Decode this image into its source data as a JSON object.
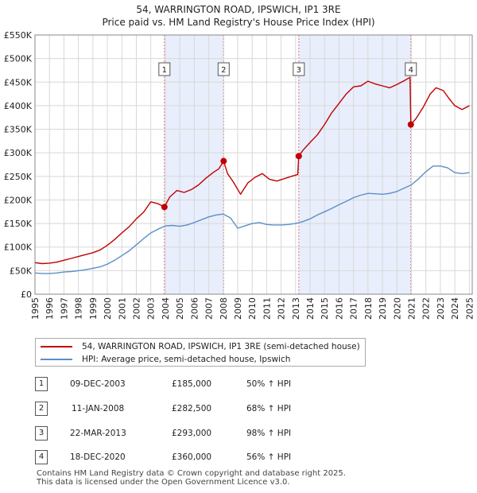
{
  "title_line1": "54, WARRINGTON ROAD, IPSWICH, IP1 3RE",
  "title_line2": "Price paid vs. HM Land Registry's House Price Index (HPI)",
  "legend": {
    "property": "54, WARRINGTON ROAD, IPSWICH, IP1 3RE (semi-detached house)",
    "hpi": "HPI: Average price, semi-detached house, Ipswich"
  },
  "colors": {
    "property": "#c00000",
    "hpi": "#5b8fc9",
    "shade": "#e8eefb",
    "vline": "#e07070"
  },
  "transactions": [
    {
      "num": "1",
      "date": "09-DEC-2003",
      "price": "£185,000",
      "hpi": "50% ↑ HPI"
    },
    {
      "num": "2",
      "date": "11-JAN-2008",
      "price": "£282,500",
      "hpi": "68% ↑ HPI"
    },
    {
      "num": "3",
      "date": "22-MAR-2013",
      "price": "£293,000",
      "hpi": "98% ↑ HPI"
    },
    {
      "num": "4",
      "date": "18-DEC-2020",
      "price": "£360,000",
      "hpi": "56% ↑ HPI"
    }
  ],
  "footer": {
    "line1": "Contains HM Land Registry data © Crown copyright and database right 2025.",
    "line2": "This data is licensed under the Open Government Licence v3.0."
  },
  "chart_data": {
    "type": "line",
    "title": "54, WARRINGTON ROAD, IPSWICH, IP1 3RE — Price paid vs. HM Land Registry's House Price Index (HPI)",
    "xlabel": "",
    "ylabel": "",
    "xlim": [
      1995,
      2025.2
    ],
    "ylim": [
      0,
      550000
    ],
    "xticks": [
      1995,
      1996,
      1997,
      1998,
      1999,
      2000,
      2001,
      2002,
      2003,
      2004,
      2005,
      2006,
      2007,
      2008,
      2009,
      2010,
      2011,
      2012,
      2013,
      2014,
      2015,
      2016,
      2017,
      2018,
      2019,
      2020,
      2021,
      2022,
      2023,
      2024,
      2025
    ],
    "yticks": [
      {
        "value": 0,
        "label": "£0"
      },
      {
        "value": 50000,
        "label": "£50K"
      },
      {
        "value": 100000,
        "label": "£100K"
      },
      {
        "value": 150000,
        "label": "£150K"
      },
      {
        "value": 200000,
        "label": "£200K"
      },
      {
        "value": 250000,
        "label": "£250K"
      },
      {
        "value": 300000,
        "label": "£300K"
      },
      {
        "value": 350000,
        "label": "£350K"
      },
      {
        "value": 400000,
        "label": "£400K"
      },
      {
        "value": 450000,
        "label": "£450K"
      },
      {
        "value": 500000,
        "label": "£500K"
      },
      {
        "value": 550000,
        "label": "£550K"
      }
    ],
    "grid": true,
    "shaded_ranges": [
      [
        2003.94,
        2008.03
      ],
      [
        2013.22,
        2020.96
      ]
    ],
    "sales": [
      {
        "label": "1",
        "x": 2003.94,
        "y": 185000
      },
      {
        "label": "2",
        "x": 2008.03,
        "y": 282500
      },
      {
        "label": "3",
        "x": 2013.22,
        "y": 293000
      },
      {
        "label": "4",
        "x": 2020.96,
        "y": 360000
      }
    ],
    "series": [
      {
        "name": "54, WARRINGTON ROAD, IPSWICH, IP1 3RE (semi-detached house)",
        "x": [
          1995,
          1995.5,
          1996,
          1996.5,
          1997,
          1997.5,
          1998,
          1998.5,
          1999,
          1999.5,
          2000,
          2000.5,
          2001,
          2001.5,
          2002,
          2002.5,
          2003,
          2003.5,
          2003.94,
          2004.3,
          2004.8,
          2005.3,
          2005.8,
          2006.3,
          2006.8,
          2007.3,
          2007.7,
          2008.03,
          2008.3,
          2008.7,
          2009.2,
          2009.7,
          2010.2,
          2010.7,
          2011.2,
          2011.7,
          2012.2,
          2012.7,
          2013.15,
          2013.22,
          2013.5,
          2014,
          2014.5,
          2015,
          2015.5,
          2016,
          2016.5,
          2017,
          2017.5,
          2018,
          2018.5,
          2019,
          2019.5,
          2020,
          2020.5,
          2020.9,
          2020.96,
          2021.3,
          2021.8,
          2022.3,
          2022.7,
          2023.2,
          2023.6,
          2024,
          2024.5,
          2025
        ],
        "y": [
          67000,
          65000,
          66000,
          68000,
          72000,
          76000,
          80000,
          84000,
          88000,
          94000,
          104000,
          116000,
          130000,
          143000,
          160000,
          174000,
          196000,
          192000,
          185000,
          206000,
          220000,
          216000,
          222000,
          232000,
          246000,
          258000,
          266000,
          282500,
          256000,
          238000,
          212000,
          236000,
          248000,
          256000,
          244000,
          240000,
          245000,
          250000,
          254000,
          293000,
          305000,
          322000,
          338000,
          360000,
          385000,
          405000,
          425000,
          440000,
          442000,
          452000,
          446000,
          442000,
          438000,
          445000,
          453000,
          460000,
          360000,
          372000,
          396000,
          425000,
          438000,
          432000,
          415000,
          400000,
          392000,
          400000
        ]
      },
      {
        "name": "HPI: Average price, semi-detached house, Ipswich",
        "x": [
          1995,
          1995.5,
          1996,
          1996.5,
          1997,
          1997.5,
          1998,
          1998.5,
          1999,
          1999.5,
          2000,
          2000.5,
          2001,
          2001.5,
          2002,
          2002.5,
          2003,
          2003.5,
          2004,
          2004.5,
          2005,
          2005.5,
          2006,
          2006.5,
          2007,
          2007.5,
          2008,
          2008.5,
          2009,
          2009.5,
          2010,
          2010.5,
          2011,
          2011.5,
          2012,
          2012.5,
          2013,
          2013.5,
          2014,
          2014.5,
          2015,
          2015.5,
          2016,
          2016.5,
          2017,
          2017.5,
          2018,
          2018.5,
          2019,
          2019.5,
          2020,
          2020.5,
          2021,
          2021.5,
          2022,
          2022.5,
          2023,
          2023.5,
          2024,
          2024.5,
          2025
        ],
        "y": [
          45000,
          44000,
          44000,
          45000,
          47000,
          48000,
          50000,
          52000,
          55000,
          58000,
          64000,
          72000,
          82000,
          92000,
          105000,
          118000,
          130000,
          138000,
          145000,
          146000,
          144000,
          147000,
          152000,
          158000,
          164000,
          168000,
          170000,
          162000,
          140000,
          145000,
          150000,
          152000,
          148000,
          147000,
          147000,
          148000,
          150000,
          154000,
          160000,
          168000,
          175000,
          182000,
          190000,
          197000,
          205000,
          210000,
          214000,
          213000,
          212000,
          214000,
          218000,
          225000,
          232000,
          245000,
          260000,
          272000,
          272000,
          268000,
          258000,
          256000,
          258000
        ]
      }
    ]
  }
}
